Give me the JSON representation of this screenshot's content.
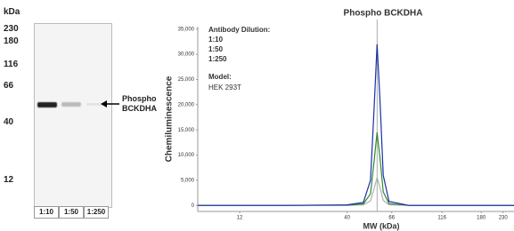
{
  "blot": {
    "unit_label": "kDa",
    "markers": [
      "230",
      "180",
      "116",
      "66",
      "40",
      "12"
    ],
    "lanes": [
      "1:10",
      "1:50",
      "1:250"
    ],
    "band_label": "Phospho BCKDHA"
  },
  "chart_data": {
    "type": "line",
    "title": "Phospho BCKDHA",
    "x_label": "MW (kDa)",
    "y_label": "Chemiluminescence",
    "annotations": [
      "Antibody Dilution:",
      "Model:",
      "HEK 293T"
    ],
    "x": [
      7.5,
      20,
      40,
      48,
      52,
      54,
      56,
      58,
      60,
      64,
      80,
      150,
      260
    ],
    "series": [
      {
        "name": "1:10",
        "color": "#1a2fa8",
        "values": [
          0,
          0,
          100,
          600,
          5000,
          18000,
          32000,
          20000,
          6000,
          800,
          0,
          0,
          0
        ]
      },
      {
        "name": "1:50",
        "color": "#2e8b2e",
        "values": [
          0,
          0,
          50,
          300,
          2300,
          8200,
          14500,
          9000,
          2700,
          350,
          0,
          0,
          0
        ]
      },
      {
        "name": "1:250",
        "color": "#b0b0b0",
        "values": [
          0,
          0,
          20,
          120,
          900,
          3100,
          5500,
          3400,
          1000,
          130,
          0,
          0,
          0
        ]
      }
    ],
    "reference_line_x": 56,
    "log_x": true,
    "xlim": [
      7.5,
      260
    ],
    "xticks": [
      12,
      40,
      66,
      116,
      180,
      230
    ],
    "ylim": [
      -1200,
      35500
    ],
    "yticks": [
      0,
      {
        "value": 5000,
        "label": "5,000"
      },
      {
        "value": 10000,
        "label": "10,000"
      },
      {
        "value": 15000,
        "label": "15,000"
      },
      {
        "value": 20000,
        "label": "20,000"
      },
      {
        "value": 25000,
        "label": "25,000"
      },
      {
        "value": 30000,
        "label": "30,000"
      },
      {
        "value": 35000,
        "label": "35,000"
      }
    ]
  }
}
